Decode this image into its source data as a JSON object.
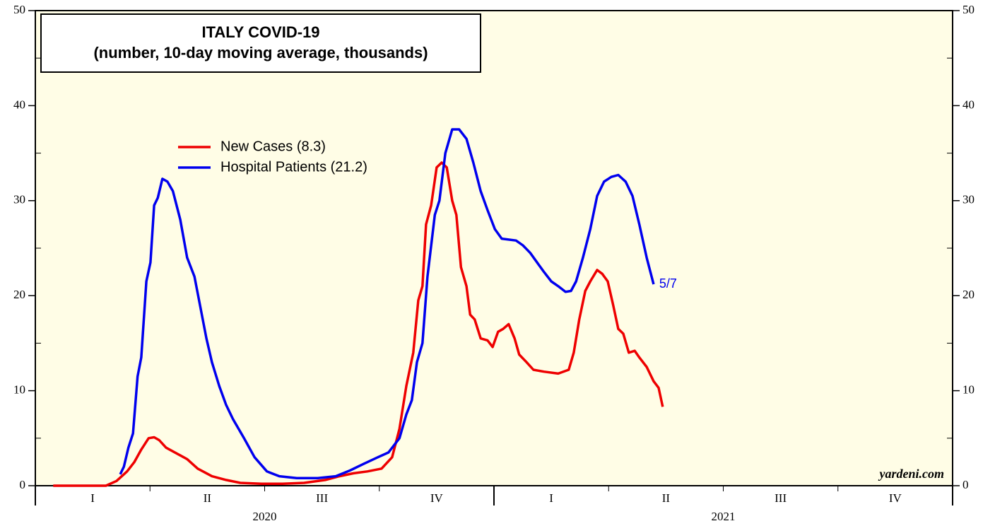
{
  "chart_data": {
    "type": "line",
    "title": "ITALY COVID-19",
    "subtitle": "(number, 10-day moving average, thousands)",
    "annotation": "5/7",
    "source": "yardeni.com",
    "xlim": [
      2020,
      2022
    ],
    "ylim": [
      0,
      50
    ],
    "yticks": [
      0,
      10,
      20,
      30,
      40,
      50
    ],
    "yminorticks": [
      5,
      15,
      25,
      35,
      45
    ],
    "xticks": [
      {
        "value": 2020.125,
        "label": "I"
      },
      {
        "value": 2020.375,
        "label": "II"
      },
      {
        "value": 2020.625,
        "label": "III"
      },
      {
        "value": 2020.875,
        "label": "IV"
      },
      {
        "value": 2021.125,
        "label": "I"
      },
      {
        "value": 2021.375,
        "label": "II"
      },
      {
        "value": 2021.625,
        "label": "III"
      },
      {
        "value": 2021.875,
        "label": "IV"
      }
    ],
    "year_labels": [
      {
        "value": 2020.5,
        "label": "2020"
      },
      {
        "value": 2021.5,
        "label": "2021"
      }
    ],
    "xmajorticks": [
      2020,
      2021,
      2022
    ],
    "xminorticks": [
      2020.25,
      2020.5,
      2020.75,
      2021.25,
      2021.5,
      2021.75
    ],
    "series": [
      {
        "name": "New Cases (8.3)",
        "color": "#ee0000",
        "x": [
          2020.039,
          2020.154,
          2020.177,
          2020.2,
          2020.216,
          2020.231,
          2020.247,
          2020.259,
          2020.27,
          2020.285,
          2020.308,
          2020.331,
          2020.354,
          2020.385,
          2020.416,
          2020.447,
          2020.493,
          2020.539,
          2020.586,
          2020.632,
          2020.663,
          2020.693,
          2020.724,
          2020.755,
          2020.778,
          2020.794,
          2020.809,
          2020.824,
          2020.835,
          2020.844,
          2020.852,
          2020.863,
          2020.875,
          2020.886,
          2020.897,
          2020.909,
          2020.918,
          2020.928,
          2020.94,
          2020.948,
          2020.958,
          2020.971,
          2020.986,
          2020.997,
          2021.009,
          2021.02,
          2021.032,
          2021.045,
          2021.055,
          2021.071,
          2021.086,
          2021.109,
          2021.14,
          2021.163,
          2021.174,
          2021.186,
          2021.199,
          2021.21,
          2021.225,
          2021.236,
          2021.248,
          2021.26,
          2021.271,
          2021.282,
          2021.294,
          2021.307,
          2021.317,
          2021.333,
          2021.348,
          2021.359,
          2021.368
        ],
        "values": [
          0,
          0,
          0.5,
          1.5,
          2.5,
          3.8,
          5.0,
          5.1,
          4.8,
          4.0,
          3.4,
          2.8,
          1.8,
          1.0,
          0.6,
          0.3,
          0.2,
          0.2,
          0.3,
          0.6,
          1.0,
          1.3,
          1.5,
          1.8,
          3.0,
          6,
          10.5,
          14,
          19.5,
          21,
          27.5,
          29.5,
          33.5,
          34,
          33.5,
          30,
          28.5,
          23,
          21,
          18,
          17.5,
          15.5,
          15.3,
          14.6,
          16.2,
          16.5,
          17,
          15.5,
          13.8,
          13,
          12.2,
          12.0,
          11.8,
          12.2,
          14,
          17.5,
          20.5,
          21.5,
          22.7,
          22.3,
          21.5,
          19,
          16.5,
          16,
          14,
          14.2,
          13.5,
          12.5,
          11,
          10.3,
          8.3
        ]
      },
      {
        "name": "Hospital Patients (21.2)",
        "color": "#0000ee",
        "x": [
          2020.185,
          2020.193,
          2020.203,
          2020.213,
          2020.223,
          2020.231,
          2020.242,
          2020.251,
          2020.259,
          2020.267,
          2020.277,
          2020.288,
          2020.3,
          2020.316,
          2020.331,
          2020.347,
          2020.359,
          2020.373,
          2020.385,
          2020.401,
          2020.416,
          2020.431,
          2020.455,
          2020.478,
          2020.505,
          2020.532,
          2020.57,
          2020.616,
          2020.655,
          2020.686,
          2020.716,
          2020.747,
          2020.77,
          2020.794,
          2020.809,
          2020.821,
          2020.832,
          2020.844,
          2020.855,
          2020.871,
          2020.881,
          2020.894,
          2020.909,
          2020.924,
          2020.94,
          2020.955,
          2020.971,
          2020.986,
          2021.002,
          2021.017,
          2021.048,
          2021.063,
          2021.079,
          2021.094,
          2021.109,
          2021.125,
          2021.14,
          2021.156,
          2021.168,
          2021.179,
          2021.194,
          2021.21,
          2021.225,
          2021.24,
          2021.256,
          2021.271,
          2021.287,
          2021.302,
          2021.317,
          2021.333,
          2021.348
        ],
        "values": [
          1.2,
          2,
          4,
          5.5,
          11.5,
          13.5,
          21.5,
          23.5,
          29.5,
          30.3,
          32.3,
          32.0,
          31.0,
          28,
          24,
          22,
          19,
          15.5,
          13,
          10.5,
          8.5,
          7,
          5,
          3,
          1.5,
          1.0,
          0.8,
          0.8,
          1.0,
          1.6,
          2.3,
          3,
          3.5,
          5,
          7.5,
          9,
          13,
          15,
          22,
          28.5,
          30,
          35,
          37.5,
          37.5,
          36.5,
          34,
          31,
          29,
          27,
          26,
          25.8,
          25.3,
          24.5,
          23.5,
          22.5,
          21.5,
          21,
          20.4,
          20.5,
          21.5,
          24,
          27,
          30.5,
          32,
          32.5,
          32.7,
          32,
          30.5,
          27.5,
          24,
          21.2
        ]
      }
    ]
  }
}
